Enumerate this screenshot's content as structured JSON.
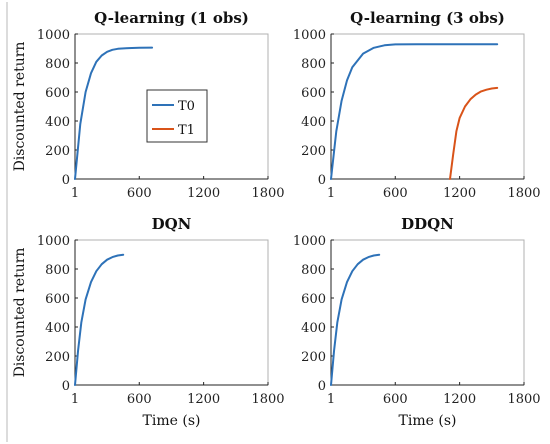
{
  "chart_data": [
    {
      "type": "line",
      "title": "Q-learning (1 obs)",
      "xlabel": "",
      "ylabel": "Discounted return",
      "xlim": [
        1,
        1800
      ],
      "ylim": [
        0,
        1000
      ],
      "xticks": [
        1,
        600,
        1200,
        1800
      ],
      "yticks": [
        0,
        200,
        400,
        600,
        800,
        1000
      ],
      "legend": {
        "position": "center",
        "entries": [
          "T0",
          "T1"
        ]
      },
      "series": [
        {
          "name": "T0",
          "color": "#2e72b8",
          "x": [
            1,
            50,
            100,
            150,
            200,
            250,
            300,
            350,
            400,
            500,
            600,
            720
          ],
          "y": [
            0,
            380,
            600,
            730,
            808,
            852,
            877,
            891,
            898,
            903,
            905,
            906
          ]
        }
      ]
    },
    {
      "type": "line",
      "title": "Q-learning (3 obs)",
      "xlabel": "",
      "ylabel": "",
      "xlim": [
        1,
        1800
      ],
      "ylim": [
        0,
        1000
      ],
      "xticks": [
        1,
        600,
        1200,
        1800
      ],
      "yticks": [
        0,
        200,
        400,
        600,
        800,
        1000
      ],
      "series": [
        {
          "name": "T0",
          "color": "#2e72b8",
          "x": [
            1,
            50,
            100,
            150,
            200,
            300,
            400,
            500,
            600,
            800,
            1000,
            1200,
            1400,
            1550
          ],
          "y": [
            0,
            330,
            540,
            680,
            770,
            865,
            905,
            922,
            928,
            930,
            930,
            930,
            930,
            930
          ]
        },
        {
          "name": "T1",
          "color": "#d95319",
          "x": [
            1110,
            1140,
            1170,
            1200,
            1250,
            1300,
            1350,
            1400,
            1450,
            1500,
            1550
          ],
          "y": [
            0,
            170,
            330,
            420,
            500,
            550,
            582,
            604,
            616,
            624,
            628
          ]
        }
      ]
    },
    {
      "type": "line",
      "title": "DQN",
      "xlabel": "Time (s)",
      "ylabel": "Discounted return",
      "xlim": [
        1,
        1800
      ],
      "ylim": [
        0,
        1000
      ],
      "xticks": [
        1,
        600,
        1200,
        1800
      ],
      "yticks": [
        0,
        200,
        400,
        600,
        800,
        1000
      ],
      "series": [
        {
          "name": "T0",
          "color": "#2e72b8",
          "x": [
            1,
            30,
            60,
            100,
            150,
            200,
            250,
            300,
            350,
            400,
            450
          ],
          "y": [
            0,
            240,
            430,
            590,
            710,
            785,
            833,
            864,
            882,
            893,
            898
          ]
        }
      ]
    },
    {
      "type": "line",
      "title": "DDQN",
      "xlabel": "Time (s)",
      "ylabel": "",
      "xlim": [
        1,
        1800
      ],
      "ylim": [
        0,
        1000
      ],
      "xticks": [
        1,
        600,
        1200,
        1800
      ],
      "yticks": [
        0,
        200,
        400,
        600,
        800,
        1000
      ],
      "series": [
        {
          "name": "T0",
          "color": "#2e72b8",
          "x": [
            1,
            30,
            60,
            100,
            150,
            200,
            250,
            300,
            350,
            400,
            450
          ],
          "y": [
            0,
            240,
            430,
            590,
            710,
            785,
            833,
            864,
            882,
            893,
            898
          ]
        }
      ]
    }
  ]
}
